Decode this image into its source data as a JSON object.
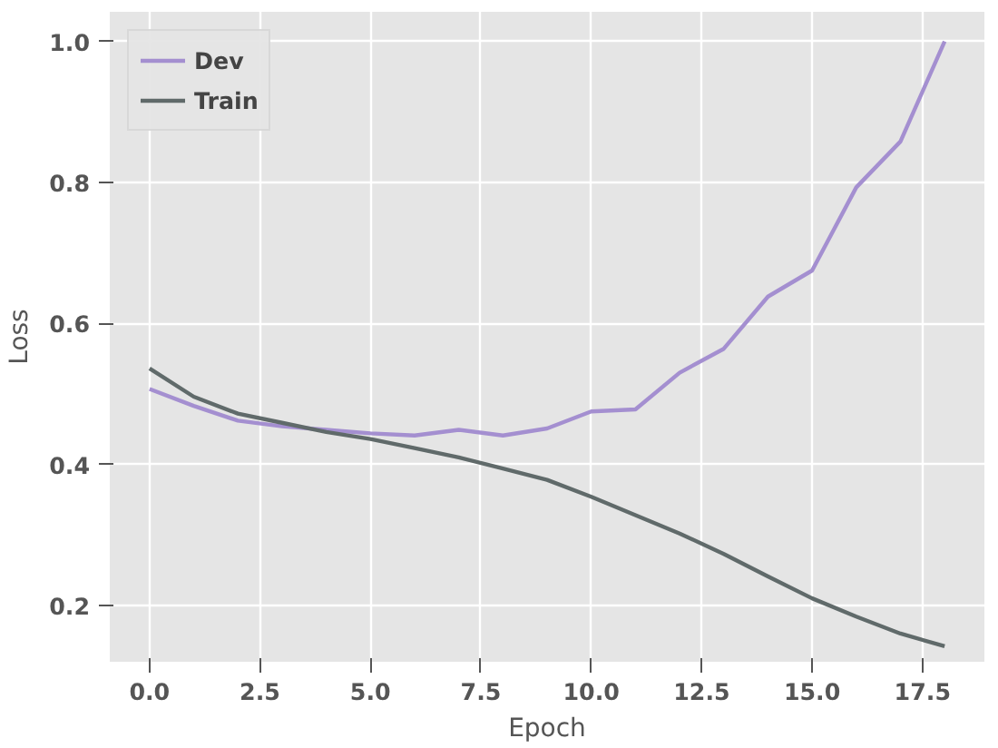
{
  "chart_data": {
    "type": "line",
    "xlabel": "Epoch",
    "ylabel": "Loss",
    "x": [
      0,
      1,
      2,
      3,
      4,
      5,
      6,
      7,
      8,
      9,
      10,
      11,
      12,
      13,
      14,
      15,
      16,
      17,
      18
    ],
    "series": [
      {
        "name": "Dev",
        "color": "#a48fd0",
        "values": [
          0.507,
          0.483,
          0.462,
          0.454,
          0.449,
          0.444,
          0.441,
          0.449,
          0.441,
          0.451,
          0.475,
          0.478,
          0.53,
          0.564,
          0.638,
          0.675,
          0.793,
          0.858,
          1.0
        ]
      },
      {
        "name": "Train",
        "color": "#606a6a",
        "values": [
          0.536,
          0.496,
          0.472,
          0.459,
          0.446,
          0.436,
          0.423,
          0.41,
          0.394,
          0.378,
          0.354,
          0.328,
          0.302,
          0.273,
          0.241,
          0.21,
          0.184,
          0.16,
          0.142
        ]
      }
    ],
    "xlim": [
      -0.9,
      18.9
    ],
    "ylim": [
      0.12,
      1.042
    ],
    "xticks": [
      {
        "value": 0,
        "label": "0.0"
      },
      2.5,
      {
        "value": 5,
        "label": "5.0"
      },
      7.5,
      {
        "value": 10,
        "label": "10.0"
      },
      12.5,
      {
        "value": 15,
        "label": "15.0"
      },
      17.5
    ],
    "yticks": [
      0.2,
      0.4,
      0.6,
      0.8,
      {
        "value": 1,
        "label": "1.0"
      }
    ],
    "grid": true,
    "legend": "top left",
    "line_style": "solid"
  }
}
